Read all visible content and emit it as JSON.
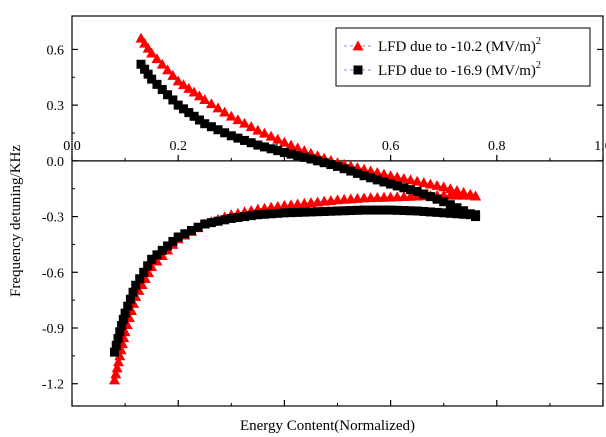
{
  "chart_data": {
    "type": "scatter",
    "xlabel": "Energy Content(Normalized)",
    "ylabel": "Frequency detuning/KHz",
    "xlim": [
      0,
      1.0
    ],
    "ylim": [
      -1.32,
      0.78
    ],
    "x_ticks": [
      0,
      0.2,
      0.4,
      0.6,
      0.8,
      1.0
    ],
    "x_tick_labels": [
      "0.0",
      "0.2",
      "0.4",
      "0.6",
      "0.8",
      "1.0"
    ],
    "y_ticks": [
      0.6,
      0.3,
      0.0,
      -0.3,
      -0.6,
      -0.9,
      -1.2
    ],
    "y_tick_labels": [
      "0.6",
      "0.3",
      "0.0",
      "-0.3",
      "-0.6",
      "-0.9",
      "-1.2"
    ],
    "x_axis_position": "y = 0 (labels above the zero line)",
    "grid": false,
    "legend_position": "top-right",
    "series": [
      {
        "name": "LFD due to -10.2 (MV/m)",
        "legend_superscript": "2",
        "color": "#ff0000",
        "marker": "triangle",
        "branches": [
          {
            "x": [
              0.13,
              0.15,
              0.2,
              0.25,
              0.3,
              0.35,
              0.4,
              0.45,
              0.5,
              0.55,
              0.6,
              0.65,
              0.7,
              0.75,
              0.76
            ],
            "y": [
              0.66,
              0.58,
              0.43,
              0.33,
              0.24,
              0.165,
              0.1,
              0.04,
              -0.01,
              -0.045,
              -0.08,
              -0.11,
              -0.14,
              -0.18,
              -0.19
            ]
          },
          {
            "x": [
              0.08,
              0.09,
              0.1,
              0.12,
              0.15,
              0.2,
              0.25,
              0.3,
              0.35,
              0.4,
              0.45,
              0.5,
              0.55,
              0.6,
              0.65,
              0.7,
              0.75,
              0.76
            ],
            "y": [
              -1.18,
              -1.05,
              -0.92,
              -0.73,
              -0.57,
              -0.42,
              -0.34,
              -0.29,
              -0.26,
              -0.24,
              -0.225,
              -0.21,
              -0.2,
              -0.195,
              -0.19,
              -0.185,
              -0.185,
              -0.19
            ]
          }
        ]
      },
      {
        "name": "LFD due to -16.9 (MV/m)",
        "legend_superscript": "2",
        "color": "#000000",
        "marker": "square",
        "branches": [
          {
            "x": [
              0.13,
              0.15,
              0.2,
              0.25,
              0.3,
              0.35,
              0.4,
              0.45,
              0.5,
              0.55,
              0.6,
              0.65,
              0.7,
              0.75,
              0.76
            ],
            "y": [
              0.52,
              0.44,
              0.3,
              0.2,
              0.135,
              0.085,
              0.045,
              0.01,
              -0.03,
              -0.08,
              -0.125,
              -0.165,
              -0.22,
              -0.285,
              -0.3
            ]
          },
          {
            "x": [
              0.08,
              0.09,
              0.1,
              0.12,
              0.15,
              0.2,
              0.25,
              0.3,
              0.35,
              0.4,
              0.45,
              0.5,
              0.55,
              0.6,
              0.65,
              0.7,
              0.75,
              0.76
            ],
            "y": [
              -1.03,
              -0.92,
              -0.82,
              -0.67,
              -0.53,
              -0.41,
              -0.34,
              -0.31,
              -0.29,
              -0.28,
              -0.275,
              -0.27,
              -0.265,
              -0.265,
              -0.27,
              -0.28,
              -0.29,
              -0.29
            ]
          }
        ]
      }
    ]
  }
}
